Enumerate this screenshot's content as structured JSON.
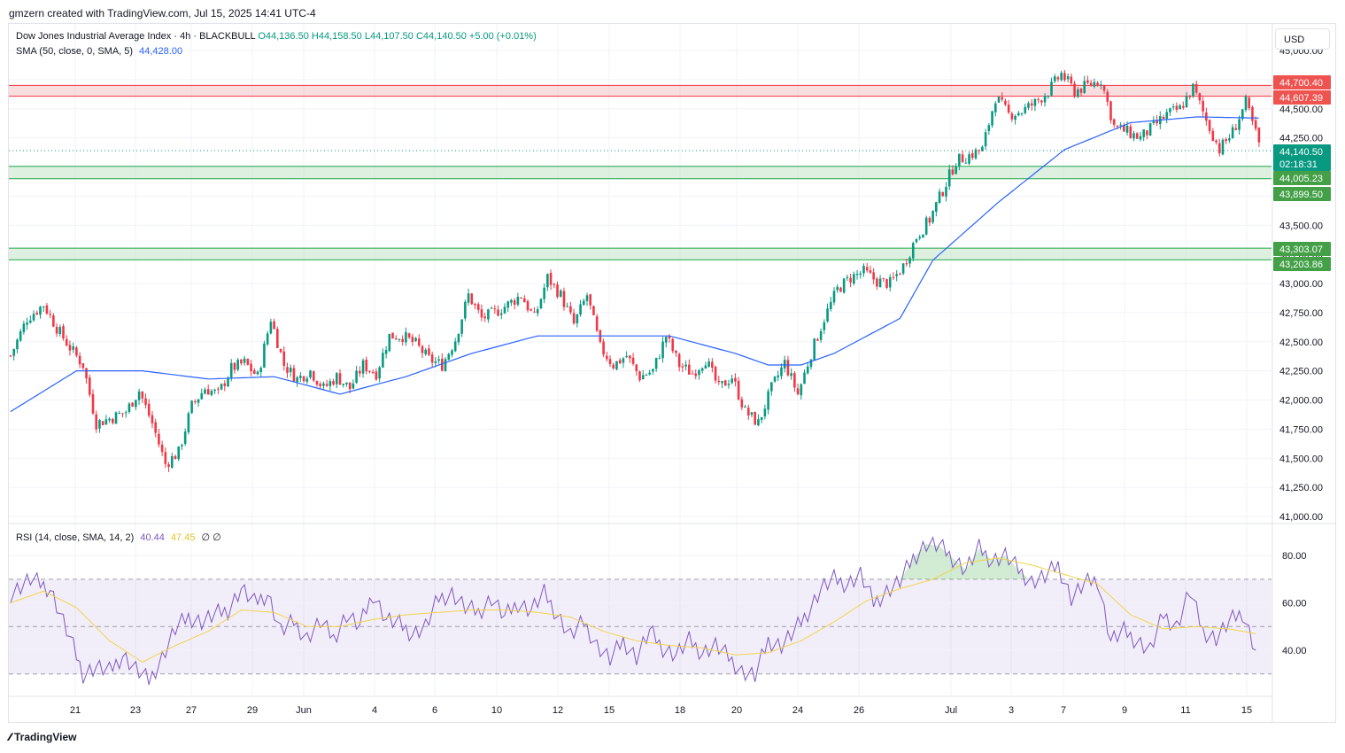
{
  "header": {
    "caption": "gmzern created with TradingView.com, Jul 15, 2025 14:41 UTC-4"
  },
  "symbol": {
    "name": "Dow Jones Industrial Average Index · 4h · BLACKBULL",
    "open": "O44,136.50",
    "high": "H44,158.50",
    "low": "L44,107.50",
    "close": "C44,140.50",
    "change": "+5.00 (+0.01%)"
  },
  "sma_legend": {
    "label": "SMA (50, close, 0, SMA, 5)",
    "value": "44,428.00"
  },
  "rsi_legend": {
    "label": "RSI (14, close, SMA, 14, 2)",
    "rsi": "40.44",
    "sma": "47.45",
    "extra": "∅ ∅"
  },
  "currency_button": "USD",
  "brand": "TradingView",
  "colors": {
    "up": "#089981",
    "down": "#f23645",
    "sma": "#2962ff",
    "rsi": "#7e57c2",
    "rsi_sma": "#f0d44a",
    "resistance_zone": "#f7c6c9",
    "support_zone": "#c8e6c9"
  },
  "chart_data": [
    {
      "type": "candlestick",
      "title": "Dow Jones Industrial Average Index",
      "timeframe": "4h",
      "ylim": [
        41000,
        45000
      ],
      "y_ticks": [
        "41,000.00",
        "41,250.00",
        "41,500.00",
        "41,750.00",
        "42,000.00",
        "42,250.00",
        "42,500.00",
        "42,750.00",
        "43,000.00",
        "43,250.00",
        "43,500.00",
        "43,750.00",
        "44,000.00",
        "44,250.00",
        "44,500.00",
        "44,750.00",
        "45,000.00"
      ],
      "x_ticks": [
        "21",
        "23",
        "27",
        "29",
        "Jun",
        "4",
        "6",
        "10",
        "12",
        "15",
        "18",
        "20",
        "24",
        "26",
        "Jul",
        "3",
        "7",
        "9",
        "11",
        "15"
      ],
      "price_labels": [
        {
          "text": "44,700.40",
          "value": 44700.4,
          "kind": "resistance"
        },
        {
          "text": "44,607.39",
          "value": 44607.39,
          "kind": "resistance"
        },
        {
          "text": "44,140.50",
          "value": 44140.5,
          "kind": "last"
        },
        {
          "text": "02:18:31",
          "kind": "countdown"
        },
        {
          "text": "44,005.23",
          "value": 44005.23,
          "kind": "support"
        },
        {
          "text": "43,899.50",
          "value": 43899.5,
          "kind": "support"
        },
        {
          "text": "43,303.07",
          "value": 43303.07,
          "kind": "support"
        },
        {
          "text": "43,203.86",
          "value": 43203.86,
          "kind": "support"
        }
      ],
      "zones": [
        {
          "kind": "resistance",
          "from": 44607.39,
          "to": 44700.4
        },
        {
          "kind": "support",
          "from": 43899.5,
          "to": 44005.23
        },
        {
          "kind": "support",
          "from": 43203.86,
          "to": 43303.07
        }
      ],
      "close_path": [
        [
          0,
          42380
        ],
        [
          5,
          42700
        ],
        [
          10,
          42820
        ],
        [
          14,
          42620
        ],
        [
          18,
          42450
        ],
        [
          22,
          42300
        ],
        [
          26,
          41800
        ],
        [
          31,
          41850
        ],
        [
          35,
          41900
        ],
        [
          39,
          42080
        ],
        [
          43,
          41800
        ],
        [
          47,
          41450
        ],
        [
          51,
          41550
        ],
        [
          55,
          41950
        ],
        [
          59,
          42100
        ],
        [
          63,
          42050
        ],
        [
          67,
          42270
        ],
        [
          71,
          42320
        ],
        [
          75,
          42200
        ],
        [
          79,
          42700
        ],
        [
          83,
          42300
        ],
        [
          87,
          42180
        ],
        [
          91,
          42250
        ],
        [
          95,
          42100
        ],
        [
          99,
          42200
        ],
        [
          103,
          42100
        ],
        [
          107,
          42300
        ],
        [
          111,
          42230
        ],
        [
          115,
          42550
        ],
        [
          119,
          42550
        ],
        [
          123,
          42480
        ],
        [
          127,
          42350
        ],
        [
          131,
          42300
        ],
        [
          135,
          42520
        ],
        [
          139,
          42900
        ],
        [
          143,
          42700
        ],
        [
          147,
          42750
        ],
        [
          151,
          42820
        ],
        [
          155,
          42900
        ],
        [
          159,
          42700
        ],
        [
          163,
          43050
        ],
        [
          167,
          42900
        ],
        [
          171,
          42650
        ],
        [
          175,
          42900
        ],
        [
          179,
          42450
        ],
        [
          183,
          42300
        ],
        [
          187,
          42380
        ],
        [
          191,
          42200
        ],
        [
          195,
          42250
        ],
        [
          199,
          42550
        ],
        [
          203,
          42300
        ],
        [
          207,
          42230
        ],
        [
          211,
          42350
        ],
        [
          215,
          42100
        ],
        [
          219,
          42200
        ],
        [
          223,
          41900
        ],
        [
          227,
          41800
        ],
        [
          231,
          42100
        ],
        [
          235,
          42320
        ],
        [
          239,
          42050
        ],
        [
          243,
          42400
        ],
        [
          247,
          42700
        ],
        [
          251,
          42950
        ],
        [
          255,
          43050
        ],
        [
          259,
          43100
        ],
        [
          263,
          43020
        ],
        [
          267,
          43000
        ],
        [
          271,
          43150
        ],
        [
          275,
          43400
        ],
        [
          279,
          43550
        ],
        [
          283,
          43800
        ],
        [
          287,
          44050
        ],
        [
          291,
          44100
        ],
        [
          295,
          44150
        ],
        [
          299,
          44600
        ],
        [
          303,
          44450
        ],
        [
          307,
          44480
        ],
        [
          311,
          44550
        ],
        [
          315,
          44650
        ],
        [
          319,
          44800
        ],
        [
          323,
          44650
        ],
        [
          327,
          44700
        ],
        [
          331,
          44750
        ],
        [
          335,
          44350
        ],
        [
          339,
          44300
        ],
        [
          343,
          44250
        ],
        [
          347,
          44350
        ],
        [
          351,
          44450
        ],
        [
          355,
          44500
        ],
        [
          359,
          44680
        ],
        [
          363,
          44400
        ],
        [
          367,
          44150
        ],
        [
          371,
          44300
        ],
        [
          375,
          44550
        ],
        [
          379,
          44200
        ]
      ],
      "sma_path": [
        [
          0,
          41900
        ],
        [
          20,
          42250
        ],
        [
          40,
          42250
        ],
        [
          60,
          42180
        ],
        [
          80,
          42200
        ],
        [
          100,
          42050
        ],
        [
          120,
          42200
        ],
        [
          140,
          42400
        ],
        [
          160,
          42550
        ],
        [
          180,
          42550
        ],
        [
          200,
          42550
        ],
        [
          220,
          42400
        ],
        [
          230,
          42300
        ],
        [
          240,
          42300
        ],
        [
          250,
          42400
        ],
        [
          260,
          42550
        ],
        [
          270,
          42700
        ],
        [
          280,
          43200
        ],
        [
          300,
          43700
        ],
        [
          320,
          44150
        ],
        [
          340,
          44380
        ],
        [
          360,
          44430
        ],
        [
          379,
          44420
        ]
      ]
    },
    {
      "type": "line",
      "title": "RSI (14, close, SMA, 14, 2)",
      "ylim": [
        25,
        95
      ],
      "y_ticks": [
        "40.00",
        "60.00",
        "80.00"
      ],
      "band": [
        30,
        70
      ],
      "mid": 50,
      "series": [
        {
          "name": "RSI",
          "color": "#7e57c2",
          "values": [
            [
              0,
              64
            ],
            [
              6,
              70
            ],
            [
              12,
              66
            ],
            [
              18,
              45
            ],
            [
              22,
              30
            ],
            [
              26,
              33
            ],
            [
              30,
              31
            ],
            [
              34,
              38
            ],
            [
              38,
              32
            ],
            [
              42,
              27
            ],
            [
              46,
              37
            ],
            [
              50,
              49
            ],
            [
              54,
              54
            ],
            [
              58,
              52
            ],
            [
              62,
              55
            ],
            [
              66,
              57
            ],
            [
              70,
              66
            ],
            [
              74,
              60
            ],
            [
              78,
              64
            ],
            [
              82,
              48
            ],
            [
              86,
              52
            ],
            [
              90,
              45
            ],
            [
              94,
              52
            ],
            [
              98,
              45
            ],
            [
              102,
              55
            ],
            [
              106,
              50
            ],
            [
              110,
              64
            ],
            [
              114,
              53
            ],
            [
              118,
              51
            ],
            [
              122,
              47
            ],
            [
              126,
              50
            ],
            [
              130,
              62
            ],
            [
              134,
              64
            ],
            [
              138,
              58
            ],
            [
              142,
              56
            ],
            [
              146,
              62
            ],
            [
              150,
              54
            ],
            [
              154,
              60
            ],
            [
              158,
              57
            ],
            [
              162,
              64
            ],
            [
              166,
              55
            ],
            [
              170,
              46
            ],
            [
              174,
              52
            ],
            [
              178,
              42
            ],
            [
              182,
              36
            ],
            [
              186,
              44
            ],
            [
              190,
              37
            ],
            [
              194,
              48
            ],
            [
              198,
              41
            ],
            [
              202,
              38
            ],
            [
              206,
              44
            ],
            [
              210,
              39
            ],
            [
              214,
              42
            ],
            [
              218,
              37
            ],
            [
              222,
              31
            ],
            [
              226,
              29
            ],
            [
              230,
              44
            ],
            [
              234,
              42
            ],
            [
              238,
              48
            ],
            [
              242,
              56
            ],
            [
              246,
              66
            ],
            [
              250,
              70
            ],
            [
              254,
              68
            ],
            [
              258,
              72
            ],
            [
              262,
              60
            ],
            [
              266,
              65
            ],
            [
              270,
              69
            ],
            [
              274,
              79
            ],
            [
              278,
              85
            ],
            [
              282,
              84
            ],
            [
              286,
              79
            ],
            [
              290,
              74
            ],
            [
              294,
              83
            ],
            [
              298,
              78
            ],
            [
              302,
              80
            ],
            [
              306,
              74
            ],
            [
              310,
              69
            ],
            [
              314,
              71
            ],
            [
              318,
              76
            ],
            [
              322,
              62
            ],
            [
              326,
              68
            ],
            [
              330,
              70
            ],
            [
              334,
              44
            ],
            [
              338,
              48
            ],
            [
              342,
              44
            ],
            [
              346,
              40
            ],
            [
              350,
              55
            ],
            [
              354,
              50
            ],
            [
              358,
              65
            ],
            [
              362,
              48
            ],
            [
              366,
              45
            ],
            [
              370,
              52
            ],
            [
              374,
              56
            ],
            [
              378,
              40
            ]
          ]
        },
        {
          "name": "RSI SMA",
          "color": "#f0d44a",
          "values": [
            [
              0,
              60
            ],
            [
              10,
              65
            ],
            [
              20,
              58
            ],
            [
              30,
              44
            ],
            [
              40,
              35
            ],
            [
              50,
              42
            ],
            [
              60,
              48
            ],
            [
              70,
              57
            ],
            [
              80,
              56
            ],
            [
              90,
              50
            ],
            [
              100,
              50
            ],
            [
              110,
              53
            ],
            [
              120,
              55
            ],
            [
              130,
              56
            ],
            [
              140,
              57
            ],
            [
              150,
              57
            ],
            [
              160,
              56
            ],
            [
              170,
              54
            ],
            [
              180,
              48
            ],
            [
              190,
              44
            ],
            [
              200,
              42
            ],
            [
              210,
              41
            ],
            [
              220,
              38
            ],
            [
              230,
              39
            ],
            [
              240,
              44
            ],
            [
              250,
              52
            ],
            [
              260,
              61
            ],
            [
              270,
              66
            ],
            [
              280,
              70
            ],
            [
              290,
              77
            ],
            [
              300,
              79
            ],
            [
              310,
              76
            ],
            [
              320,
              72
            ],
            [
              330,
              68
            ],
            [
              340,
              55
            ],
            [
              350,
              49
            ],
            [
              360,
              50
            ],
            [
              370,
              49
            ],
            [
              378,
              47
            ]
          ]
        }
      ]
    }
  ]
}
